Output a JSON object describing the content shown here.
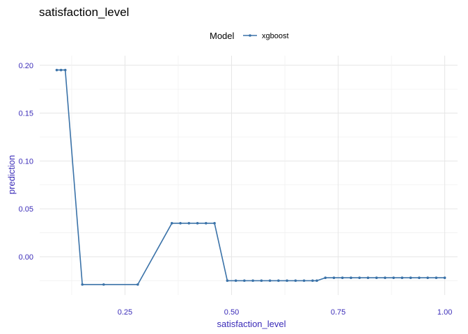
{
  "chart_data": {
    "type": "line",
    "title": "satisfaction_level",
    "xlabel": "satisfaction_level",
    "ylabel": "prediction",
    "xlim": [
      0.05,
      1.03
    ],
    "ylim": [
      -0.04,
      0.21
    ],
    "xticks": [
      0.25,
      0.5,
      0.75,
      1.0
    ],
    "xtick_labels": [
      "0.25",
      "0.50",
      "0.75",
      "1.00"
    ],
    "yticks": [
      0.0,
      0.05,
      0.1,
      0.15,
      0.2
    ],
    "ytick_labels": [
      "0.00",
      "0.05",
      "0.10",
      "0.15",
      "0.20"
    ],
    "grid": true,
    "legend": {
      "title": "Model",
      "position": "top"
    },
    "series": [
      {
        "name": "xgboost",
        "color": "#3a72a8",
        "x": [
          0.09,
          0.1,
          0.11,
          0.15,
          0.2,
          0.28,
          0.36,
          0.38,
          0.4,
          0.42,
          0.44,
          0.46,
          0.49,
          0.51,
          0.53,
          0.55,
          0.57,
          0.59,
          0.61,
          0.63,
          0.65,
          0.67,
          0.69,
          0.7,
          0.72,
          0.74,
          0.76,
          0.78,
          0.8,
          0.82,
          0.84,
          0.86,
          0.88,
          0.9,
          0.92,
          0.94,
          0.96,
          0.98,
          1.0
        ],
        "y": [
          0.195,
          0.195,
          0.195,
          -0.029,
          -0.029,
          -0.029,
          0.035,
          0.035,
          0.035,
          0.035,
          0.035,
          0.035,
          -0.025,
          -0.025,
          -0.025,
          -0.025,
          -0.025,
          -0.025,
          -0.025,
          -0.025,
          -0.025,
          -0.025,
          -0.025,
          -0.025,
          -0.022,
          -0.022,
          -0.022,
          -0.022,
          -0.022,
          -0.022,
          -0.022,
          -0.022,
          -0.022,
          -0.022,
          -0.022,
          -0.022,
          -0.022,
          -0.022,
          -0.022
        ]
      }
    ]
  }
}
